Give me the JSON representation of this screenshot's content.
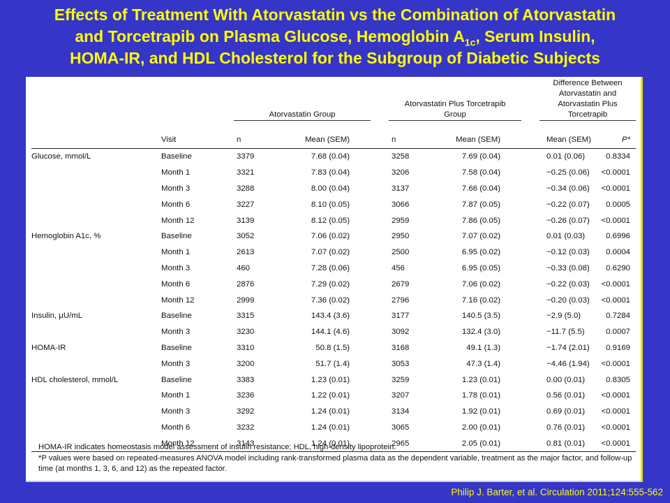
{
  "title": {
    "line1": "Effects of Treatment With Atorvastatin vs the Combination of Atorvastatin",
    "line2_pre": "and Torcetrapib on Plasma Glucose, Hemoglobin A",
    "line2_sub": "1c",
    "line2_post": ", Serum Insulin,",
    "line3": "HOMA-IR, and HDL Cholesterol for the Subgroup of Diabetic Subjects"
  },
  "groups": {
    "ator": "Atorvastatin Group",
    "combo": "Atorvastatin Plus Torcetrapib Group",
    "diff": "Difference Between Atorvastatin and Atorvastatin Plus Torcetrapib"
  },
  "columns": {
    "visit": "Visit",
    "n1": "n",
    "mean1": "Mean (SEM)",
    "n2": "n",
    "mean2": "Mean (SEM)",
    "diff_mean": "Mean (SEM)",
    "p": "P*"
  },
  "rows": [
    {
      "var": "Glucose, mmol/L",
      "visit": "Baseline",
      "n1": "3379",
      "m1": "7.68 (0.04)",
      "n2": "3258",
      "m2": "7.69 (0.04)",
      "d": "0.01 (0.06)",
      "p": "0.8334"
    },
    {
      "var": "",
      "visit": "Month 1",
      "n1": "3321",
      "m1": "7.83 (0.04)",
      "n2": "3206",
      "m2": "7.58 (0.04)",
      "d": "−0.25 (0.06)",
      "p": "<0.0001"
    },
    {
      "var": "",
      "visit": "Month 3",
      "n1": "3288",
      "m1": "8.00 (0.04)",
      "n2": "3137",
      "m2": "7.66 (0.04)",
      "d": "−0.34 (0.06)",
      "p": "<0.0001"
    },
    {
      "var": "",
      "visit": "Month 6",
      "n1": "3227",
      "m1": "8.10 (0.05)",
      "n2": "3066",
      "m2": "7.87 (0.05)",
      "d": "−0.22 (0.07)",
      "p": "0.0005"
    },
    {
      "var": "",
      "visit": "Month 12",
      "n1": "3139",
      "m1": "8.12 (0.05)",
      "n2": "2959",
      "m2": "7.86 (0.05)",
      "d": "−0.26 (0.07)",
      "p": "<0.0001"
    },
    {
      "var": "Hemoglobin A1c, %",
      "visit": "Baseline",
      "n1": "3052",
      "m1": "7.06 (0.02)",
      "n2": "2950",
      "m2": "7.07 (0.02)",
      "d": "0.01 (0.03)",
      "p": "0.6996"
    },
    {
      "var": "",
      "visit": "Month 1",
      "n1": "2613",
      "m1": "7.07 (0.02)",
      "n2": "2500",
      "m2": "6.95 (0.02)",
      "d": "−0.12 (0.03)",
      "p": "0.0004"
    },
    {
      "var": "",
      "visit": "Month 3",
      "n1": "460",
      "m1": "7.28 (0.06)",
      "n2": "456",
      "m2": "6.95 (0.05)",
      "d": "−0.33 (0.08)",
      "p": "0.6290"
    },
    {
      "var": "",
      "visit": "Month 6",
      "n1": "2876",
      "m1": "7.29 (0.02)",
      "n2": "2679",
      "m2": "7.06 (0.02)",
      "d": "−0.22 (0.03)",
      "p": "<0.0001"
    },
    {
      "var": "",
      "visit": "Month 12",
      "n1": "2999",
      "m1": "7.36 (0.02)",
      "n2": "2796",
      "m2": "7.16 (0.02)",
      "d": "−0.20 (0.03)",
      "p": "<0.0001"
    },
    {
      "var": "Insulin, μU/mL",
      "visit": "Baseline",
      "n1": "3315",
      "m1": "143.4 (3.6)",
      "n2": "3177",
      "m2": "140.5 (3.5)",
      "d": "−2.9 (5.0)",
      "p": "0.7284"
    },
    {
      "var": "",
      "visit": "Month 3",
      "n1": "3230",
      "m1": "144.1 (4.6)",
      "n2": "3092",
      "m2": "132.4 (3.0)",
      "d": "−11.7 (5.5)",
      "p": "0.0007"
    },
    {
      "var": "HOMA-IR",
      "visit": "Baseline",
      "n1": "3310",
      "m1": "50.8 (1.5)",
      "n2": "3168",
      "m2": "49.1 (1.3)",
      "d": "−1.74 (2.01)",
      "p": "0.9169"
    },
    {
      "var": "",
      "visit": "Month 3",
      "n1": "3200",
      "m1": "51.7 (1.4)",
      "n2": "3053",
      "m2": "47.3 (1.4)",
      "d": "−4.46 (1.94)",
      "p": "<0.0001"
    },
    {
      "var": "HDL cholesterol, mmol/L",
      "visit": "Baseline",
      "n1": "3383",
      "m1": "1.23 (0.01)",
      "n2": "3259",
      "m2": "1.23 (0.01)",
      "d": "0.00 (0.01)",
      "p": "0.8305"
    },
    {
      "var": "",
      "visit": "Month 1",
      "n1": "3236",
      "m1": "1.22 (0.01)",
      "n2": "3207",
      "m2": "1.78 (0.01)",
      "d": "0.56 (0.01)",
      "p": "<0.0001"
    },
    {
      "var": "",
      "visit": "Month 3",
      "n1": "3292",
      "m1": "1.24 (0.01)",
      "n2": "3134",
      "m2": "1.92 (0.01)",
      "d": "0.69 (0.01)",
      "p": "<0.0001"
    },
    {
      "var": "",
      "visit": "Month 6",
      "n1": "3232",
      "m1": "1.24 (0.01)",
      "n2": "3065",
      "m2": "2.00 (0.01)",
      "d": "0.76 (0.01)",
      "p": "<0.0001"
    },
    {
      "var": "",
      "visit": "Month 12",
      "n1": "3143",
      "m1": "1.24 (0.01)",
      "n2": "2965",
      "m2": "2.05 (0.01)",
      "d": "0.81 (0.01)",
      "p": "<0.0001"
    }
  ],
  "footnotes": {
    "line1": "HOMA-IR indicates homeostasis model assessment of insulin resistance; HDL, high-density lipoprotein.",
    "line2": "*P values were based on repeated-measures ANOVA model including rank-transformed plasma data as the dependent variable, treatment as the major factor, and follow-up time (at months 1, 3, 6, and 12) as the repeated factor."
  },
  "citation": "Philip J. Barter, et al. Circulation 2011;124:555-562",
  "colors": {
    "background": "#3535c8",
    "title": "#ffff00",
    "panel": "#ffffff"
  }
}
